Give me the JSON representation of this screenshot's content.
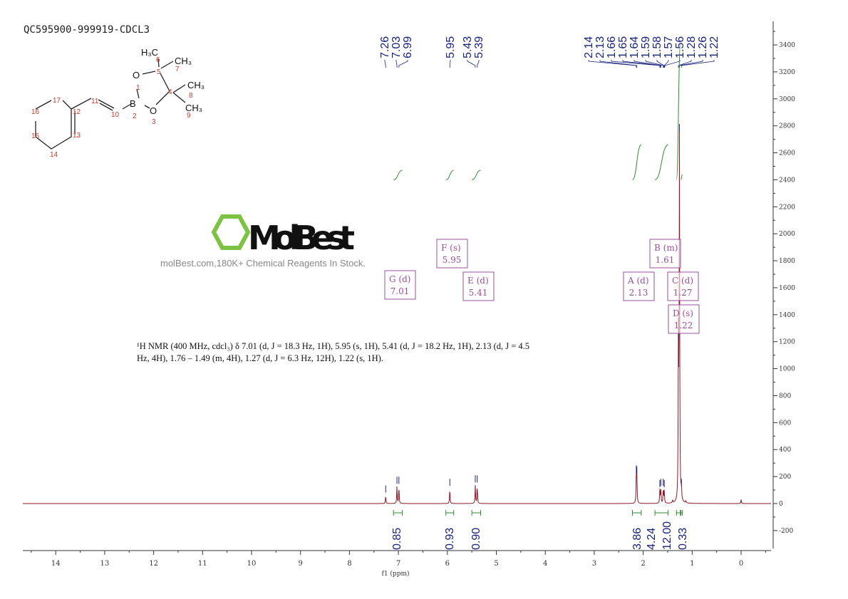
{
  "sample_id": "QC595900-999919-CDCL3",
  "nmr_description": "¹H NMR (400 MHz, cdcl₃) δ 7.01 (d, J = 18.3 Hz, 1H), 5.95 (s, 1H), 5.41 (d, J = 18.2 Hz, 1H), 2.13 (d, J = 4.5 Hz, 4H), 1.76 – 1.49 (m, 4H), 1.27 (d, J = 6.3 Hz, 12H), 1.22 (s, 1H).",
  "watermark": {
    "logo": "MolBest",
    "text": "molBest.com,180K+ Chemical Reagents In Stock."
  },
  "structure_labels": [
    "H3C",
    "CH3",
    "CH3",
    "CH3",
    "O",
    "B",
    "O",
    "1",
    "2",
    "3",
    "4",
    "5",
    "6",
    "7",
    "8",
    "9",
    "10",
    "11",
    "12",
    "13",
    "14",
    "15",
    "16",
    "17"
  ],
  "colors": {
    "spectrum": "#8b1a2b",
    "integral": "#2e8b2e",
    "peak_label": "#1a237e",
    "multiplet_box": "#9b4f9b"
  },
  "chart_data": {
    "type": "line",
    "xlabel": "f1 (ppm)",
    "xlim": [
      14.67,
      -0.61
    ],
    "ylim": [
      -300,
      3500
    ],
    "x_ticks": [
      14,
      13,
      12,
      11,
      10,
      9,
      8,
      7,
      6,
      5,
      4,
      3,
      2,
      1,
      0
    ],
    "y_ticks": [
      -200,
      0,
      200,
      400,
      600,
      800,
      1000,
      1200,
      1400,
      1600,
      1800,
      2000,
      2200,
      2400,
      2600,
      2800,
      3000,
      3200,
      3400
    ],
    "peaks": [
      [
        7.26,
        60
      ],
      [
        7.03,
        125
      ],
      [
        6.99,
        125
      ],
      [
        5.95,
        110
      ],
      [
        5.43,
        135
      ],
      [
        5.39,
        135
      ],
      [
        2.14,
        210
      ],
      [
        2.13,
        200
      ],
      [
        1.66,
        100
      ],
      [
        1.64,
        110
      ],
      [
        1.59,
        110
      ],
      [
        1.57,
        100
      ],
      [
        1.28,
        1200
      ],
      [
        1.26,
        2740
      ],
      [
        1.22,
        110
      ],
      [
        0,
        30
      ],
      [
        1.4,
        20
      ],
      [
        1.13,
        15
      ]
    ],
    "peak_labels": [
      "7.26",
      "7.03",
      "6.99",
      "5.95",
      "5.43",
      "5.39",
      "2.14",
      "2.13",
      "1.66",
      "1.65",
      "1.64",
      "1.59",
      "1.58",
      "1.57",
      "1.56",
      "1.28",
      "1.26",
      "1.22"
    ],
    "integrals": [
      {
        "from": 7.1,
        "to": 6.92,
        "value": "0.85"
      },
      {
        "from": 6.03,
        "to": 5.87,
        "value": "0.93"
      },
      {
        "from": 5.5,
        "to": 5.32,
        "value": "0.90"
      },
      {
        "from": 2.22,
        "to": 2.04,
        "value": "3.86"
      },
      {
        "from": 1.76,
        "to": 1.49,
        "value": "4.24"
      },
      {
        "from": 1.32,
        "to": 1.24,
        "value": "12.00"
      },
      {
        "from": 1.23,
        "to": 1.2,
        "value": "0.33"
      }
    ],
    "multiplets": [
      {
        "id": "G",
        "mult": "d",
        "shift": "7.01"
      },
      {
        "id": "F",
        "mult": "s",
        "shift": "5.95"
      },
      {
        "id": "E",
        "mult": "d",
        "shift": "5.41"
      },
      {
        "id": "A",
        "mult": "d",
        "shift": "2.13"
      },
      {
        "id": "B",
        "mult": "m",
        "shift": "1.61"
      },
      {
        "id": "C",
        "mult": "d",
        "shift": "1.27"
      },
      {
        "id": "D",
        "mult": "s",
        "shift": "1.22"
      }
    ]
  }
}
